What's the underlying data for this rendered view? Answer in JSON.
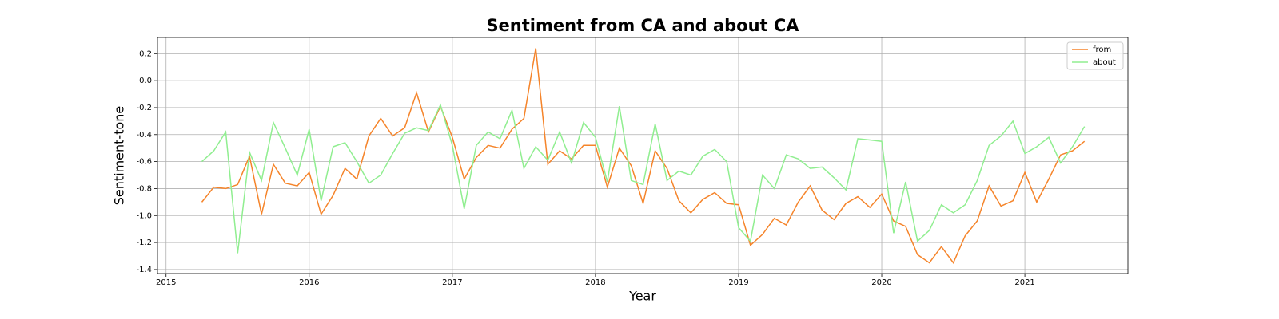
{
  "chart_data": {
    "type": "line",
    "title": "Sentiment from CA and about CA",
    "xlabel": "Year",
    "ylabel": "Sentiment-tone",
    "x": [
      2015.25,
      2015.333,
      2015.417,
      2015.5,
      2015.583,
      2015.667,
      2015.75,
      2015.833,
      2015.917,
      2016,
      2016.083,
      2016.167,
      2016.25,
      2016.333,
      2016.417,
      2016.5,
      2016.583,
      2016.667,
      2016.75,
      2016.833,
      2016.917,
      2017,
      2017.083,
      2017.167,
      2017.25,
      2017.333,
      2017.417,
      2017.5,
      2017.583,
      2017.667,
      2017.75,
      2017.833,
      2017.917,
      2018,
      2018.083,
      2018.167,
      2018.25,
      2018.333,
      2018.417,
      2018.5,
      2018.583,
      2018.667,
      2018.75,
      2018.833,
      2018.917,
      2019,
      2019.083,
      2019.167,
      2019.25,
      2019.333,
      2019.417,
      2019.5,
      2019.583,
      2019.667,
      2019.75,
      2019.833,
      2019.917,
      2020,
      2020.083,
      2020.167,
      2020.25,
      2020.333,
      2020.417,
      2020.5,
      2020.583,
      2020.667,
      2020.75,
      2020.833,
      2020.917,
      2021,
      2021.083,
      2021.167,
      2021.25,
      2021.333,
      2021.417
    ],
    "series": [
      {
        "name": "from",
        "color": "#f5842a",
        "values": [
          -0.9,
          -0.79,
          -0.8,
          -0.77,
          -0.56,
          -0.99,
          -0.62,
          -0.76,
          -0.78,
          -0.68,
          -0.99,
          -0.85,
          -0.65,
          -0.73,
          -0.41,
          -0.28,
          -0.41,
          -0.35,
          -0.09,
          -0.38,
          -0.19,
          -0.42,
          -0.73,
          -0.57,
          -0.48,
          -0.5,
          -0.36,
          -0.28,
          0.24,
          -0.62,
          -0.52,
          -0.58,
          -0.48,
          -0.48,
          -0.79,
          -0.5,
          -0.63,
          -0.91,
          -0.52,
          -0.65,
          -0.89,
          -0.98,
          -0.88,
          -0.83,
          -0.91,
          -0.92,
          -1.22,
          -1.14,
          -1.02,
          -1.07,
          -0.9,
          -0.78,
          -0.96,
          -1.03,
          -0.91,
          -0.86,
          -0.94,
          -0.84,
          -1.04,
          -1.08,
          -1.29,
          -1.35,
          -1.23,
          -1.35,
          -1.15,
          -1.04,
          -0.78,
          -0.93,
          -0.89,
          -0.68,
          -0.9,
          -0.73,
          -0.55,
          -0.52,
          -0.45
        ]
      },
      {
        "name": "about",
        "color": "#90ee90",
        "values": [
          -0.6,
          -0.52,
          -0.38,
          -1.28,
          -0.53,
          -0.74,
          -0.31,
          -0.5,
          -0.7,
          -0.36,
          -0.89,
          -0.49,
          -0.46,
          -0.6,
          -0.76,
          -0.7,
          -0.54,
          -0.39,
          -0.35,
          -0.37,
          -0.18,
          -0.48,
          -0.95,
          -0.48,
          -0.38,
          -0.43,
          -0.22,
          -0.65,
          -0.49,
          -0.59,
          -0.38,
          -0.61,
          -0.31,
          -0.42,
          -0.75,
          -0.19,
          -0.74,
          -0.77,
          -0.32,
          -0.74,
          -0.67,
          -0.7,
          -0.56,
          -0.51,
          -0.6,
          -1.09,
          -1.19,
          -0.7,
          -0.8,
          -0.55,
          -0.58,
          -0.65,
          -0.64,
          -0.72,
          -0.81,
          -0.43,
          -0.44,
          -0.45,
          -1.13,
          -0.75,
          -1.19,
          -1.11,
          -0.92,
          -0.98,
          -0.92,
          -0.74,
          -0.48,
          -0.41,
          -0.3,
          -0.54,
          -0.49,
          -0.42,
          -0.61,
          -0.49,
          -0.34
        ]
      }
    ],
    "xlim": [
      2014.94,
      2021.72
    ],
    "xticks": [
      2015,
      2016,
      2017,
      2018,
      2019,
      2020,
      2021
    ],
    "ylim": [
      -1.43,
      0.32
    ],
    "yticks": [
      0.2,
      {
        "value": 0,
        "label": "0.0"
      },
      -0.2,
      -0.4,
      -0.6,
      -0.8,
      {
        "value": -1,
        "label": "-1.0"
      },
      -1.2,
      -1.4
    ],
    "grid": true,
    "legend": "upper right"
  }
}
